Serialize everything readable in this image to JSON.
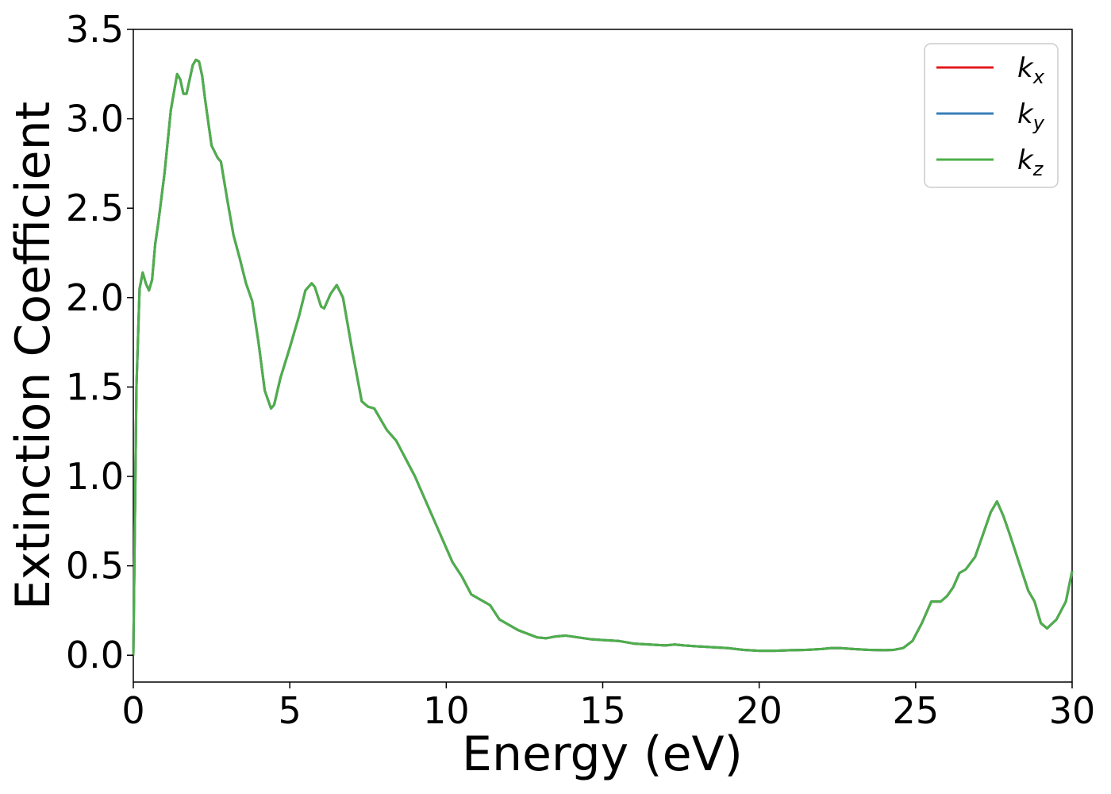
{
  "chart_data": {
    "type": "line",
    "title": "",
    "xlabel": "Energy (eV)",
    "ylabel": "Extinction Coefficient",
    "xlim": [
      0,
      30
    ],
    "ylim": [
      -0.15,
      3.5
    ],
    "xticks": [
      "0",
      "5",
      "10",
      "15",
      "20",
      "25",
      "30"
    ],
    "yticks": [
      "0.0",
      "0.5",
      "1.0",
      "1.5",
      "2.0",
      "2.5",
      "3.0",
      "3.5"
    ],
    "grid": false,
    "legend_position": "top-right",
    "x": [
      0.0,
      0.1,
      0.2,
      0.3,
      0.4,
      0.5,
      0.6,
      0.7,
      0.8,
      1.0,
      1.2,
      1.4,
      1.5,
      1.6,
      1.7,
      1.8,
      1.9,
      2.0,
      2.1,
      2.2,
      2.3,
      2.5,
      2.7,
      2.8,
      3.0,
      3.2,
      3.4,
      3.6,
      3.8,
      4.0,
      4.2,
      4.4,
      4.5,
      4.7,
      5.0,
      5.3,
      5.5,
      5.7,
      5.8,
      6.0,
      6.1,
      6.3,
      6.5,
      6.7,
      7.0,
      7.3,
      7.5,
      7.7,
      7.9,
      8.1,
      8.4,
      8.7,
      9.0,
      9.3,
      9.6,
      9.9,
      10.2,
      10.5,
      10.8,
      11.1,
      11.4,
      11.7,
      12.0,
      12.3,
      12.6,
      12.9,
      13.2,
      13.5,
      13.8,
      14.2,
      14.6,
      15.0,
      15.5,
      16.0,
      16.5,
      17.0,
      17.3,
      17.6,
      18.0,
      18.5,
      19.0,
      19.5,
      20.0,
      20.5,
      21.0,
      21.5,
      22.0,
      22.3,
      22.6,
      23.0,
      23.5,
      24.0,
      24.3,
      24.6,
      24.9,
      25.2,
      25.5,
      25.8,
      26.0,
      26.2,
      26.4,
      26.6,
      26.9,
      27.2,
      27.4,
      27.6,
      27.8,
      28.0,
      28.3,
      28.6,
      28.8,
      29.0,
      29.2,
      29.5,
      29.8,
      30.0
    ],
    "series": [
      {
        "name": "k_x",
        "color": "#e41a1c",
        "values": [
          0.0,
          1.5,
          2.05,
          2.14,
          2.08,
          2.04,
          2.1,
          2.3,
          2.42,
          2.7,
          3.05,
          3.25,
          3.22,
          3.14,
          3.14,
          3.22,
          3.3,
          3.33,
          3.32,
          3.24,
          3.1,
          2.85,
          2.78,
          2.76,
          2.55,
          2.35,
          2.22,
          2.08,
          1.98,
          1.75,
          1.48,
          1.38,
          1.4,
          1.55,
          1.72,
          1.9,
          2.04,
          2.08,
          2.06,
          1.95,
          1.94,
          2.02,
          2.07,
          2.0,
          1.7,
          1.42,
          1.39,
          1.38,
          1.32,
          1.26,
          1.2,
          1.1,
          1.0,
          0.88,
          0.76,
          0.64,
          0.52,
          0.44,
          0.34,
          0.31,
          0.28,
          0.2,
          0.17,
          0.14,
          0.12,
          0.1,
          0.095,
          0.105,
          0.11,
          0.1,
          0.09,
          0.085,
          0.08,
          0.065,
          0.06,
          0.055,
          0.06,
          0.055,
          0.05,
          0.045,
          0.04,
          0.03,
          0.025,
          0.025,
          0.028,
          0.03,
          0.035,
          0.04,
          0.04,
          0.035,
          0.03,
          0.028,
          0.03,
          0.04,
          0.08,
          0.18,
          0.3,
          0.3,
          0.33,
          0.38,
          0.46,
          0.48,
          0.55,
          0.7,
          0.8,
          0.86,
          0.78,
          0.68,
          0.52,
          0.36,
          0.3,
          0.18,
          0.15,
          0.2,
          0.3,
          0.47
        ]
      },
      {
        "name": "k_y",
        "color": "#377eb8",
        "values": [
          0.0,
          1.5,
          2.05,
          2.14,
          2.08,
          2.04,
          2.1,
          2.3,
          2.42,
          2.7,
          3.05,
          3.25,
          3.22,
          3.14,
          3.14,
          3.22,
          3.3,
          3.33,
          3.32,
          3.24,
          3.1,
          2.85,
          2.78,
          2.76,
          2.55,
          2.35,
          2.22,
          2.08,
          1.98,
          1.75,
          1.48,
          1.38,
          1.4,
          1.55,
          1.72,
          1.9,
          2.04,
          2.08,
          2.06,
          1.95,
          1.94,
          2.02,
          2.07,
          2.0,
          1.7,
          1.42,
          1.39,
          1.38,
          1.32,
          1.26,
          1.2,
          1.1,
          1.0,
          0.88,
          0.76,
          0.64,
          0.52,
          0.44,
          0.34,
          0.31,
          0.28,
          0.2,
          0.17,
          0.14,
          0.12,
          0.1,
          0.095,
          0.105,
          0.11,
          0.1,
          0.09,
          0.085,
          0.08,
          0.065,
          0.06,
          0.055,
          0.06,
          0.055,
          0.05,
          0.045,
          0.04,
          0.03,
          0.025,
          0.025,
          0.028,
          0.03,
          0.035,
          0.04,
          0.04,
          0.035,
          0.03,
          0.028,
          0.03,
          0.04,
          0.08,
          0.18,
          0.3,
          0.3,
          0.33,
          0.38,
          0.46,
          0.48,
          0.55,
          0.7,
          0.8,
          0.86,
          0.78,
          0.68,
          0.52,
          0.36,
          0.3,
          0.18,
          0.15,
          0.2,
          0.3,
          0.47
        ]
      },
      {
        "name": "k_z",
        "color": "#4daf4a",
        "values": [
          0.0,
          1.5,
          2.05,
          2.14,
          2.08,
          2.04,
          2.1,
          2.3,
          2.42,
          2.7,
          3.05,
          3.25,
          3.22,
          3.14,
          3.14,
          3.22,
          3.3,
          3.33,
          3.32,
          3.24,
          3.1,
          2.85,
          2.78,
          2.76,
          2.55,
          2.35,
          2.22,
          2.08,
          1.98,
          1.75,
          1.48,
          1.38,
          1.4,
          1.55,
          1.72,
          1.9,
          2.04,
          2.08,
          2.06,
          1.95,
          1.94,
          2.02,
          2.07,
          2.0,
          1.7,
          1.42,
          1.39,
          1.38,
          1.32,
          1.26,
          1.2,
          1.1,
          1.0,
          0.88,
          0.76,
          0.64,
          0.52,
          0.44,
          0.34,
          0.31,
          0.28,
          0.2,
          0.17,
          0.14,
          0.12,
          0.1,
          0.095,
          0.105,
          0.11,
          0.1,
          0.09,
          0.085,
          0.08,
          0.065,
          0.06,
          0.055,
          0.06,
          0.055,
          0.05,
          0.045,
          0.04,
          0.03,
          0.025,
          0.025,
          0.028,
          0.03,
          0.035,
          0.04,
          0.04,
          0.035,
          0.03,
          0.028,
          0.03,
          0.04,
          0.08,
          0.18,
          0.3,
          0.3,
          0.33,
          0.38,
          0.46,
          0.48,
          0.55,
          0.7,
          0.8,
          0.86,
          0.78,
          0.68,
          0.52,
          0.36,
          0.3,
          0.18,
          0.15,
          0.2,
          0.3,
          0.47
        ]
      }
    ],
    "legend": [
      {
        "base": "k",
        "sub": "x"
      },
      {
        "base": "k",
        "sub": "y"
      },
      {
        "base": "k",
        "sub": "z"
      }
    ]
  }
}
